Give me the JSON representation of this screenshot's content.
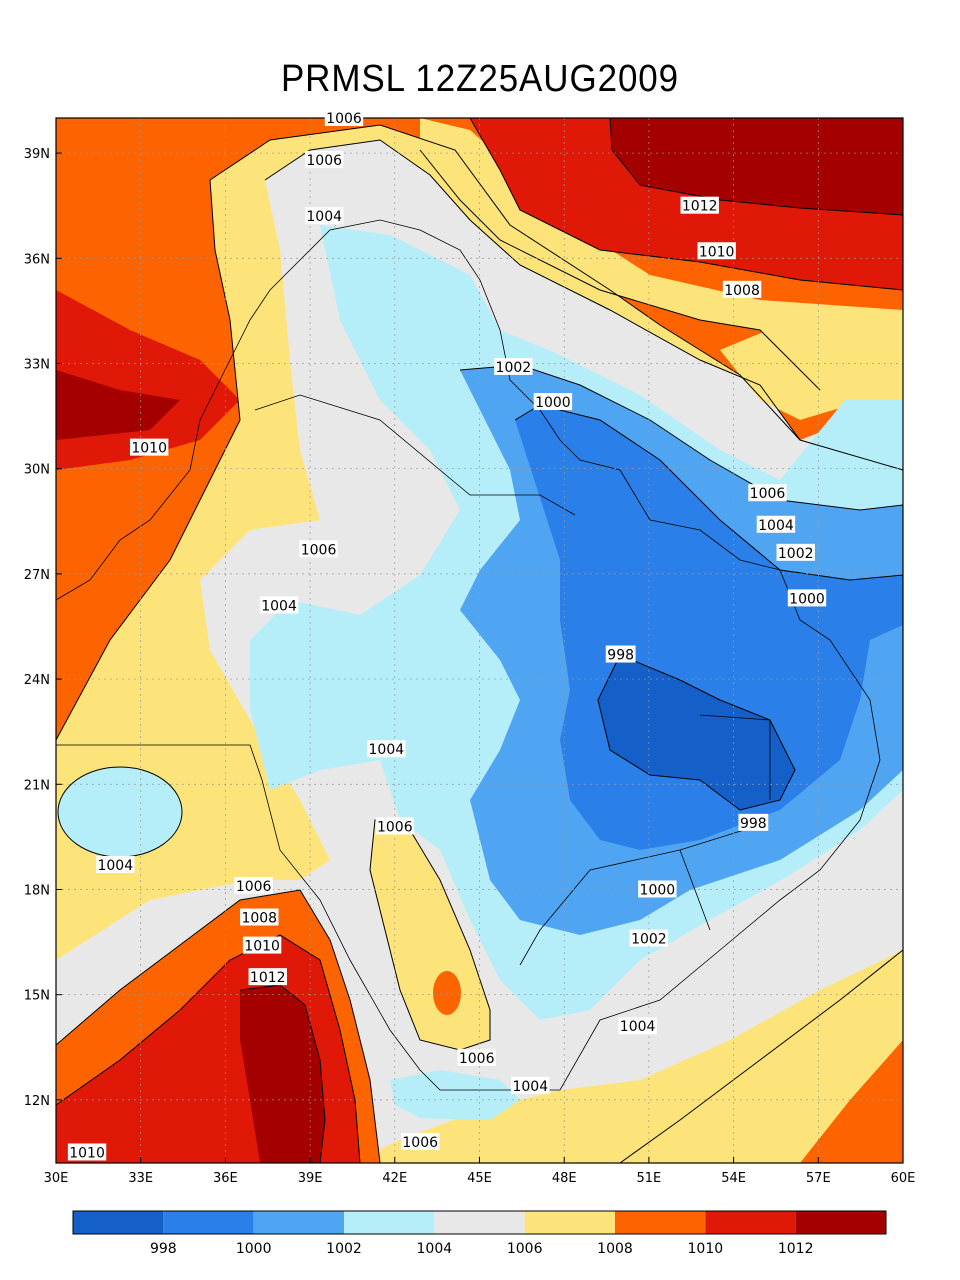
{
  "title": "PRMSL 12Z25AUG2009",
  "map": {
    "lon_range": [
      30,
      60
    ],
    "lat_range": [
      10.2,
      40
    ],
    "x_ticks": [
      "30E",
      "33E",
      "36E",
      "39E",
      "42E",
      "45E",
      "48E",
      "51E",
      "54E",
      "57E",
      "60E"
    ],
    "y_ticks": [
      "39N",
      "36N",
      "33N",
      "30N",
      "27N",
      "24N",
      "21N",
      "18N",
      "15N",
      "12N"
    ],
    "grid": true
  },
  "colors": {
    "lt998": "#1560c8",
    "998_1000": "#2a80e8",
    "1000_1002": "#50a5f2",
    "1002_1004": "#b5eef8",
    "1004_1006": "#e8e8e8",
    "1006_1008": "#fde47a",
    "1008_1010": "#fd6400",
    "1010_1012": "#e01808",
    "gt1012": "#a50000"
  },
  "contour_labels": [
    {
      "text": "1006",
      "lon": 40.2,
      "lat": 40.0
    },
    {
      "text": "1006",
      "lon": 39.5,
      "lat": 38.8
    },
    {
      "text": "1004",
      "lon": 39.5,
      "lat": 37.2
    },
    {
      "text": "1012",
      "lon": 52.8,
      "lat": 37.5
    },
    {
      "text": "1010",
      "lon": 53.4,
      "lat": 36.2
    },
    {
      "text": "1008",
      "lon": 54.3,
      "lat": 35.1
    },
    {
      "text": "1002",
      "lon": 46.2,
      "lat": 32.9
    },
    {
      "text": "1000",
      "lon": 47.6,
      "lat": 31.9
    },
    {
      "text": "1010",
      "lon": 33.3,
      "lat": 30.6
    },
    {
      "text": "1006",
      "lon": 55.2,
      "lat": 29.3
    },
    {
      "text": "1004",
      "lon": 55.5,
      "lat": 28.4
    },
    {
      "text": "1002",
      "lon": 56.2,
      "lat": 27.6
    },
    {
      "text": "1006",
      "lon": 39.3,
      "lat": 27.7
    },
    {
      "text": "1000",
      "lon": 56.6,
      "lat": 26.3
    },
    {
      "text": "1004",
      "lon": 37.9,
      "lat": 26.1
    },
    {
      "text": "998",
      "lon": 50.0,
      "lat": 24.7
    },
    {
      "text": "1004",
      "lon": 41.7,
      "lat": 22.0
    },
    {
      "text": "1006",
      "lon": 42.0,
      "lat": 19.8
    },
    {
      "text": "998",
      "lon": 54.7,
      "lat": 19.9
    },
    {
      "text": "1004",
      "lon": 32.1,
      "lat": 18.7
    },
    {
      "text": "1006",
      "lon": 37.0,
      "lat": 18.1
    },
    {
      "text": "1000",
      "lon": 51.3,
      "lat": 18.0
    },
    {
      "text": "1008",
      "lon": 37.2,
      "lat": 17.2
    },
    {
      "text": "1010",
      "lon": 37.3,
      "lat": 16.4
    },
    {
      "text": "1002",
      "lon": 51.0,
      "lat": 16.6
    },
    {
      "text": "1012",
      "lon": 37.5,
      "lat": 15.5
    },
    {
      "text": "1004",
      "lon": 50.6,
      "lat": 14.1
    },
    {
      "text": "1006",
      "lon": 44.9,
      "lat": 13.2
    },
    {
      "text": "1004",
      "lon": 46.8,
      "lat": 12.4
    },
    {
      "text": "1006",
      "lon": 42.9,
      "lat": 10.8
    },
    {
      "text": "1010",
      "lon": 31.1,
      "lat": 10.5
    }
  ],
  "colorbar": {
    "labels": [
      "998",
      "1000",
      "1002",
      "1004",
      "1006",
      "1008",
      "1010",
      "1012"
    ],
    "colors": [
      "#1560c8",
      "#2a80e8",
      "#50a5f2",
      "#b5eef8",
      "#e8e8e8",
      "#fde47a",
      "#fd6400",
      "#e01808",
      "#a50000"
    ]
  }
}
